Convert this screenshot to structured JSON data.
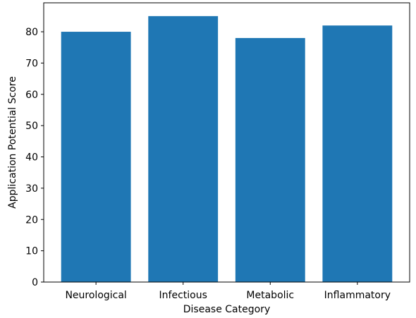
{
  "chart_data": {
    "type": "bar",
    "categories": [
      "Neurological",
      "Infectious",
      "Metabolic",
      "Inflammatory"
    ],
    "series": [
      {
        "values": [
          80,
          85,
          78,
          82
        ]
      }
    ],
    "title": "",
    "xlabel": "Disease Category",
    "ylabel": "Application Potential Score",
    "ylim": [
      0,
      89.25
    ],
    "yticks": [
      0,
      10,
      20,
      30,
      40,
      50,
      60,
      70,
      80
    ],
    "grid": false,
    "colors": {
      "bar": "#1f77b4",
      "axis": "#000000"
    }
  }
}
